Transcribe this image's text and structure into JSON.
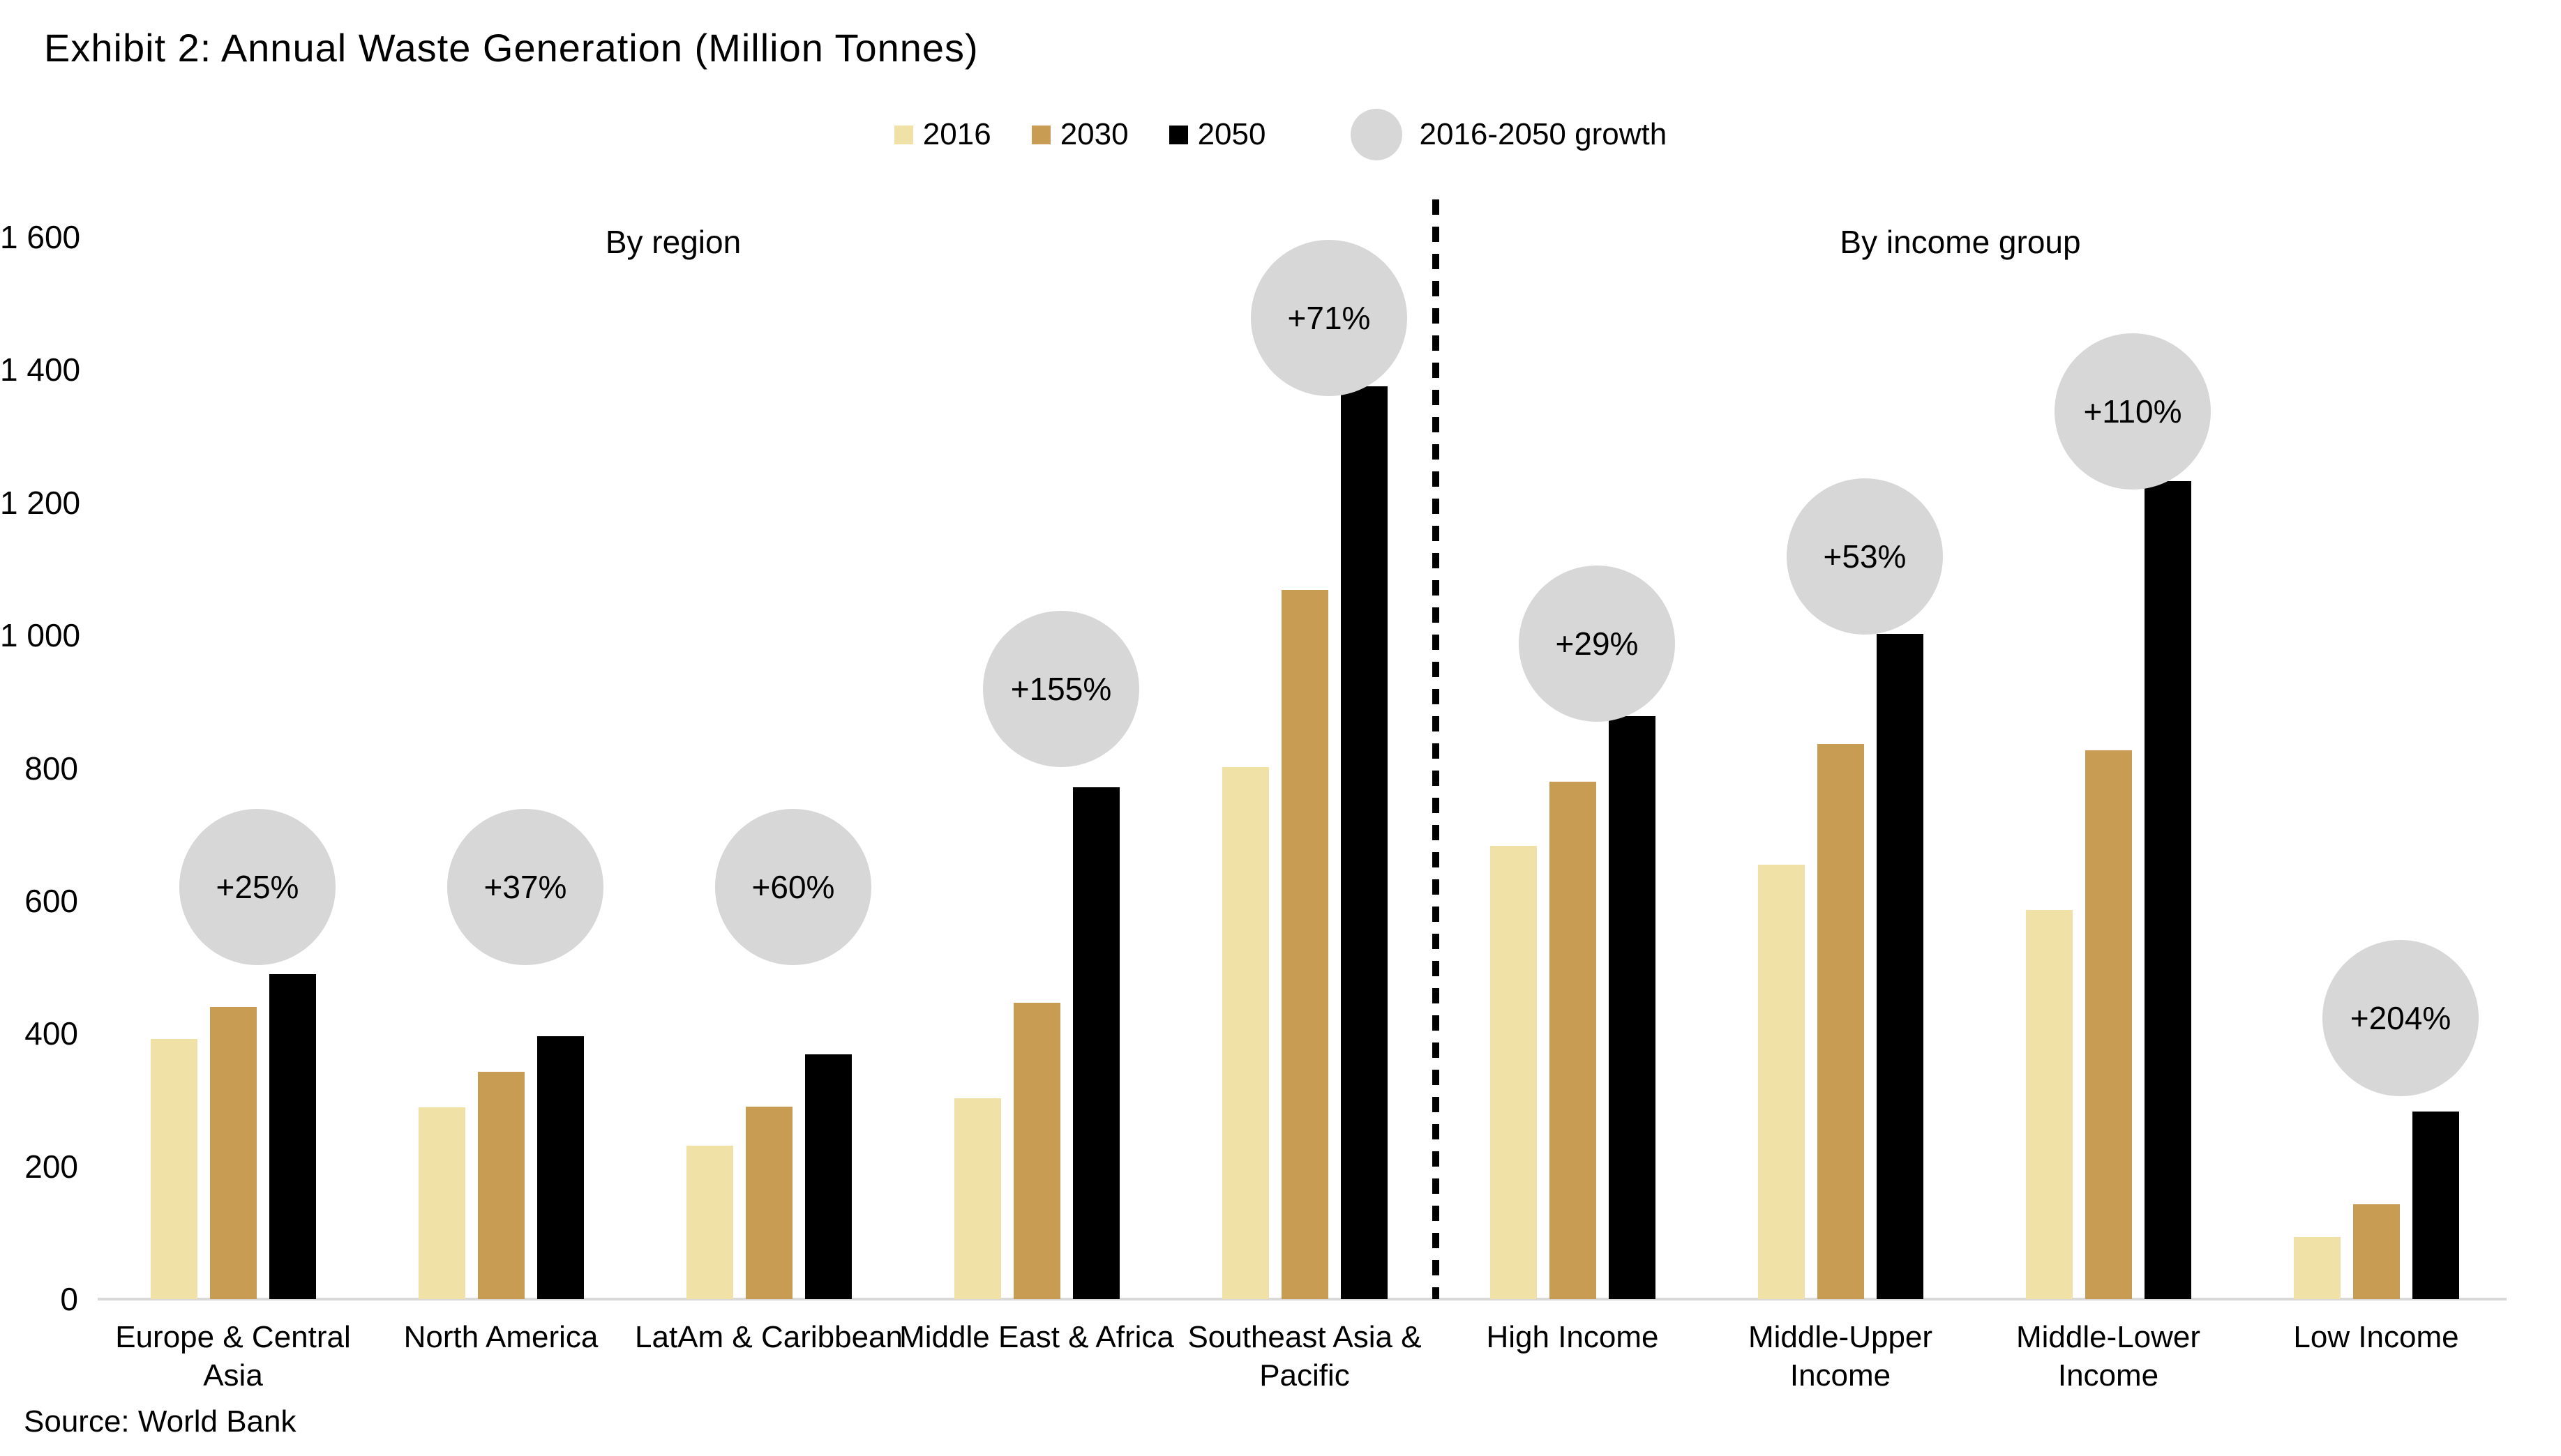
{
  "title": "Exhibit 2: Annual Waste Generation (Million Tonnes)",
  "source": "Source: World Bank",
  "colors": {
    "series_2016": "#F0E1A6",
    "series_2030": "#C89C52",
    "series_2050": "#000000",
    "bubble": "#D7D7D7",
    "axis_line": "#D9D9D9",
    "text": "#000000"
  },
  "legend": {
    "items": [
      {
        "label": "2016",
        "color": "#F0E1A6"
      },
      {
        "label": "2030",
        "color": "#C89C52"
      },
      {
        "label": "2050",
        "color": "#000000"
      }
    ],
    "growth_label": "2016-2050 growth",
    "growth_color": "#D7D7D7"
  },
  "chart_data": {
    "type": "bar",
    "title": "Exhibit 2: Annual Waste Generation (Million Tonnes)",
    "xlabel": "",
    "ylabel": "",
    "ylim": [
      0,
      1600
    ],
    "grid": false,
    "legend_position": "top-center",
    "series_names": [
      "2016",
      "2030",
      "2050"
    ],
    "yticks": [
      {
        "label": "0",
        "value": 0
      },
      {
        "label": "200",
        "value": 200
      },
      {
        "label": "400",
        "value": 400
      },
      {
        "label": "600",
        "value": 600
      },
      {
        "label": "800",
        "value": 800
      },
      {
        "label": "1 000",
        "value": 1000
      },
      {
        "label": "1 200",
        "value": 1200
      },
      {
        "label": "1 400",
        "value": 1400
      },
      {
        "label": "1 600",
        "value": 1600
      }
    ],
    "sections": [
      {
        "label": "By region",
        "label_x": 965,
        "groups": [
          {
            "category": "Europe & Central Asia",
            "label_lines": [
              "Europe & Central",
              "Asia"
            ],
            "values": [
              392,
              440,
              490
            ],
            "growth": "+25%",
            "bubble_y": 621
          },
          {
            "category": "North America",
            "label_lines": [
              "North America"
            ],
            "values": [
              289,
              342,
              396
            ],
            "growth": "+37%",
            "bubble_y": 621
          },
          {
            "category": "LatAm & Caribbean",
            "label_lines": [
              "LatAm & Caribbean"
            ],
            "values": [
              231,
              290,
              369
            ],
            "growth": "+60%",
            "bubble_y": 621
          },
          {
            "category": "Middle East & Africa",
            "label_lines": [
              "Middle East & Africa"
            ],
            "values": [
              303,
              446,
              771
            ],
            "growth": "+155%",
            "bubble_y": 919
          },
          {
            "category": "Southeast Asia & Pacific",
            "label_lines": [
              "Southeast Asia &",
              "Pacific"
            ],
            "values": [
              802,
              1068,
              1375
            ],
            "growth": "+71%",
            "bubble_y": 1478
          }
        ]
      },
      {
        "label": "By income group",
        "label_x": 2810,
        "groups": [
          {
            "category": "High Income",
            "label_lines": [
              "High Income"
            ],
            "values": [
              683,
              780,
              878
            ],
            "growth": "+29%",
            "bubble_y": 987
          },
          {
            "category": "Middle-Upper Income",
            "label_lines": [
              "Middle-Upper",
              "Income"
            ],
            "values": [
              655,
              836,
              1002
            ],
            "growth": "+53%",
            "bubble_y": 1119
          },
          {
            "category": "Middle-Lower Income",
            "label_lines": [
              "Middle-Lower",
              "Income"
            ],
            "values": [
              586,
              827,
              1232
            ],
            "growth": "+110%",
            "bubble_y": 1337
          },
          {
            "category": "Low Income",
            "label_lines": [
              "Low Income"
            ],
            "values": [
              93,
              143,
              283
            ],
            "growth": "+204%",
            "bubble_y": 423
          }
        ]
      }
    ]
  }
}
